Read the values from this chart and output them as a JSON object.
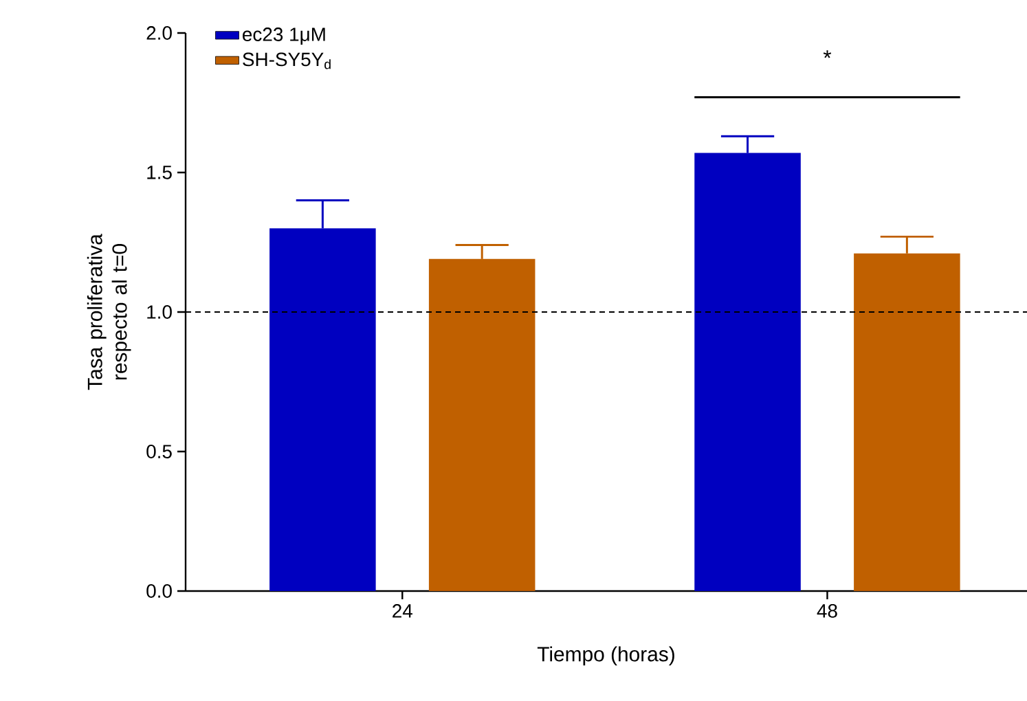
{
  "chart_data": {
    "type": "bar",
    "xlabel": "Tiempo (horas)",
    "ylabel": "Tasa proliferativa respecto al t=0",
    "categories": [
      "24",
      "48"
    ],
    "series": [
      {
        "name": "ec23 1μM",
        "color": "#0000c0",
        "values": [
          1.3,
          1.57
        ],
        "errors": [
          0.1,
          0.06
        ]
      },
      {
        "name": "SH-SY5Y$_{d}$",
        "color": "#c06000",
        "values": [
          1.19,
          1.21
        ],
        "errors": [
          0.05,
          0.06
        ]
      }
    ],
    "ylim": [
      0,
      2.0
    ],
    "yticks": [
      {
        "value": 0,
        "label": "0.0"
      },
      {
        "value": 0.5,
        "label": "0.5"
      },
      {
        "value": 1.0,
        "label": "1.0"
      },
      {
        "value": 1.5,
        "label": "1.5"
      },
      {
        "value": 2.0,
        "label": "2.0"
      }
    ],
    "ref_lines": [
      {
        "axis": "y",
        "value": 1.0,
        "line_style": "dashed"
      }
    ],
    "annotations": [
      "*"
    ],
    "legend": "top left",
    "grid": false
  }
}
